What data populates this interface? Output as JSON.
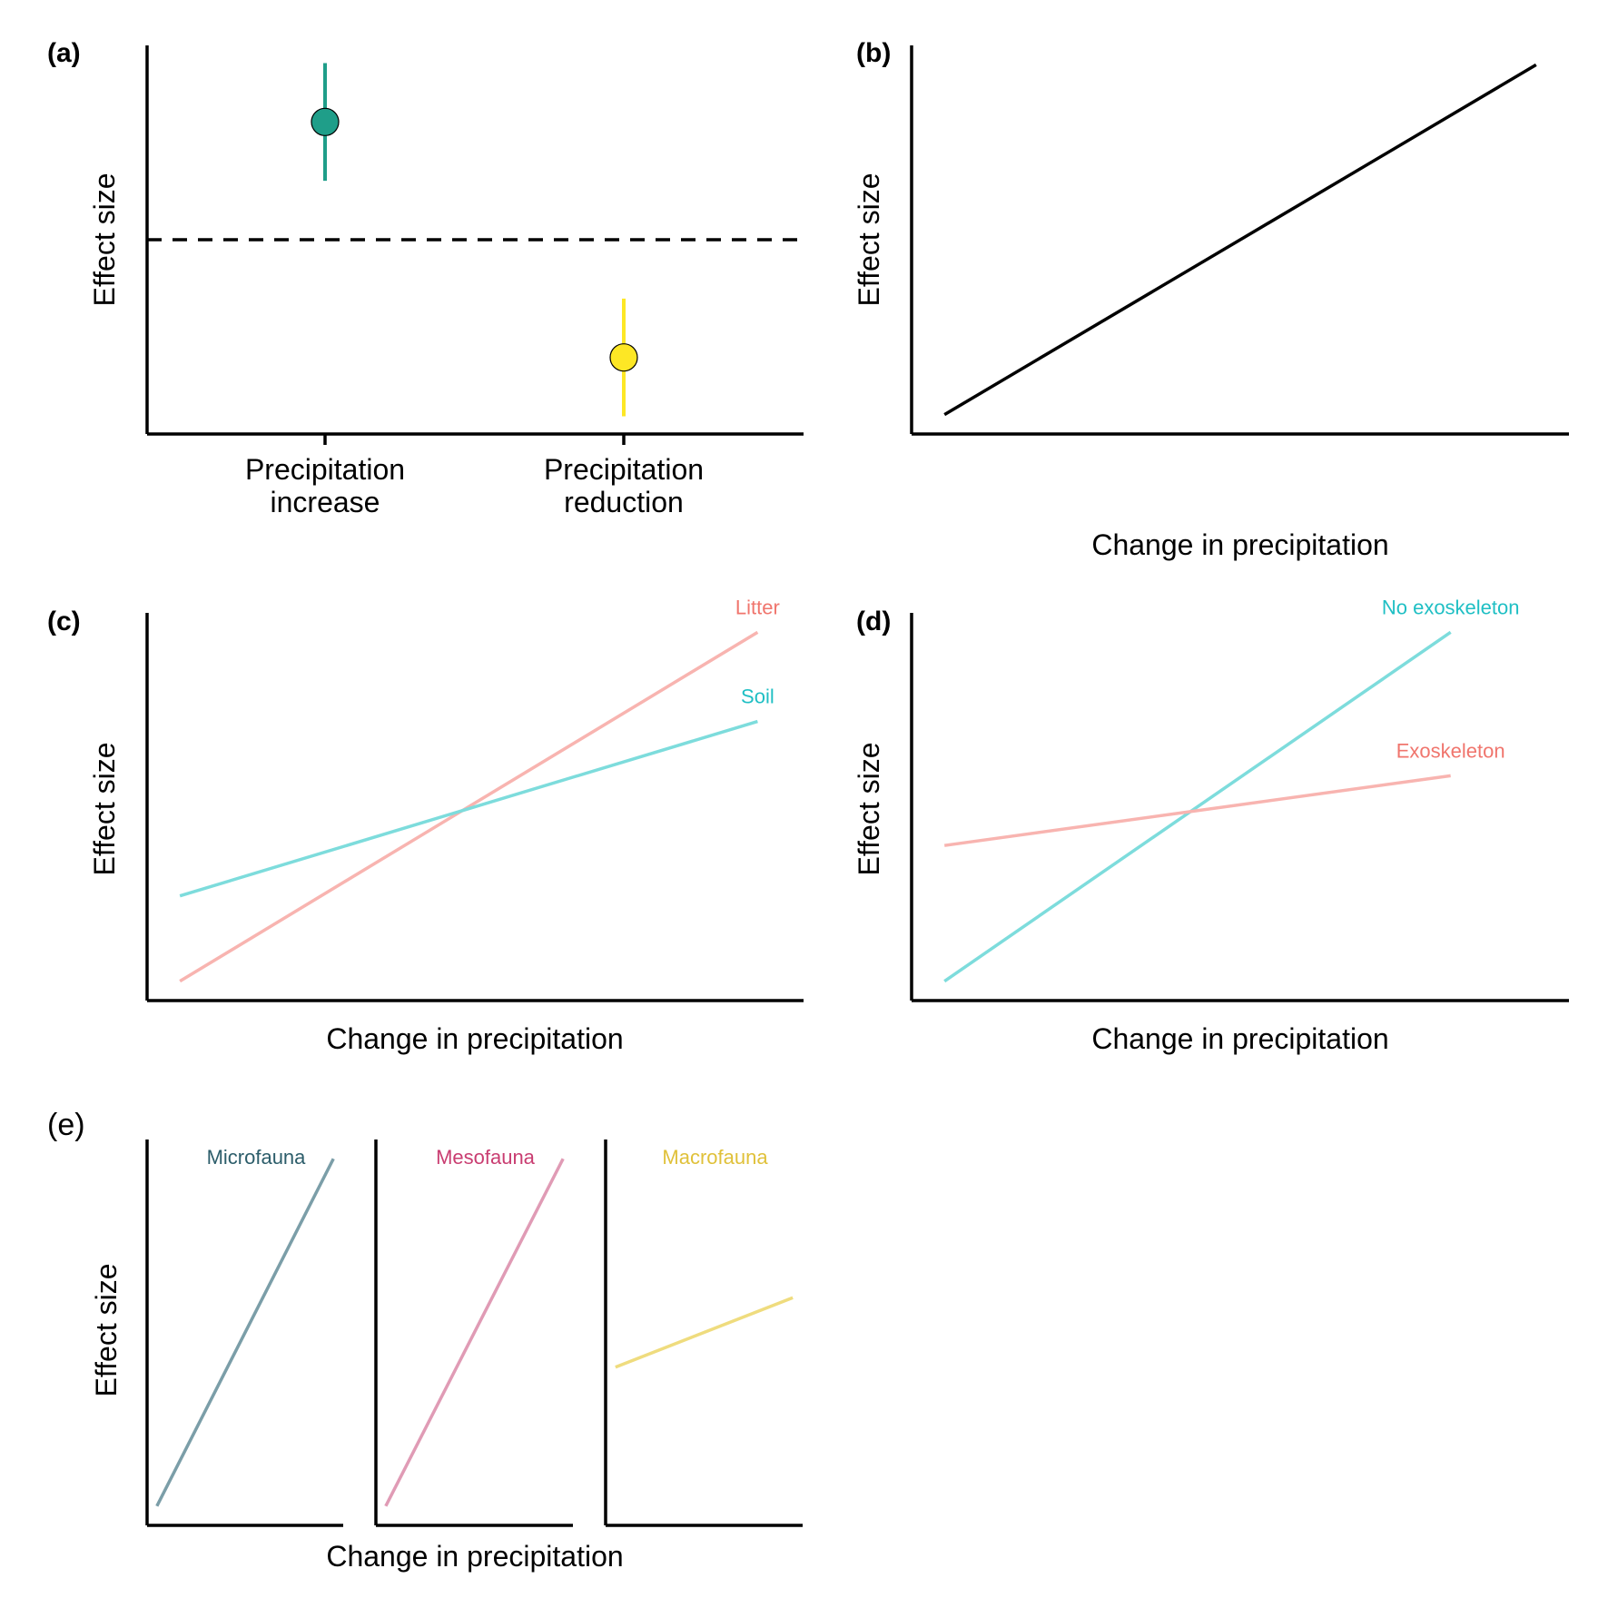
{
  "chart_data": [
    {
      "panel": "(a)",
      "type": "scatter",
      "ylabel": "Effect size",
      "xlabel": "",
      "categories": [
        "Precipitation\nincrease",
        "Precipitation\nreduction"
      ],
      "reference_line": 0,
      "points": [
        {
          "category": "Precipitation\nincrease",
          "value": 1.0,
          "lower": 0.5,
          "upper": 1.5,
          "color": "#1f9e89"
        },
        {
          "category": "Precipitation\nreduction",
          "value": -1.0,
          "lower": -1.5,
          "upper": -0.5,
          "color": "#fde725"
        }
      ],
      "ylim": [
        -1.65,
        1.65
      ]
    },
    {
      "panel": "(b)",
      "type": "line",
      "ylabel": "Effect size",
      "xlabel": "Change in precipitation",
      "series": [
        {
          "name": "",
          "x": [
            0.05,
            0.95
          ],
          "y": [
            0.05,
            0.95
          ],
          "color": "#000000"
        }
      ],
      "xlim": [
        0,
        1
      ],
      "ylim": [
        0,
        1
      ]
    },
    {
      "panel": "(c)",
      "type": "line",
      "ylabel": "Effect size",
      "xlabel": "Change in precipitation",
      "series": [
        {
          "name": "Litter",
          "x": [
            0.05,
            0.93
          ],
          "y": [
            0.05,
            0.95
          ],
          "color": "#f8b4b0",
          "label_color": "#f0756d"
        },
        {
          "name": "Soil",
          "x": [
            0.05,
            0.93
          ],
          "y": [
            0.27,
            0.72
          ],
          "color": "#7ddcdc",
          "label_color": "#1fbfc4"
        }
      ],
      "xlim": [
        0,
        1
      ],
      "ylim": [
        0,
        1
      ]
    },
    {
      "panel": "(d)",
      "type": "line",
      "ylabel": "Effect size",
      "xlabel": "Change in precipitation",
      "series": [
        {
          "name": "No exoskeleton",
          "x": [
            0.05,
            0.82
          ],
          "y": [
            0.05,
            0.95
          ],
          "color": "#7ddcdc",
          "label_color": "#1fbfc4"
        },
        {
          "name": "Exoskeleton",
          "x": [
            0.05,
            0.82
          ],
          "y": [
            0.4,
            0.58
          ],
          "color": "#f8b4b0",
          "label_color": "#f0756d"
        }
      ],
      "xlim": [
        0,
        1
      ],
      "ylim": [
        0,
        1
      ]
    },
    {
      "panel": "(e)",
      "type": "line",
      "ylabel": "Effect size",
      "xlabel": "Change in precipitation",
      "facets": [
        {
          "name": "Microfauna",
          "x": [
            0.05,
            0.95
          ],
          "y": [
            0.05,
            0.95
          ],
          "color": "#7b9ea8",
          "label_color": "#2c5d6a"
        },
        {
          "name": "Mesofauna",
          "x": [
            0.05,
            0.95
          ],
          "y": [
            0.05,
            0.95
          ],
          "color": "#e09bb5",
          "label_color": "#c93d71"
        },
        {
          "name": "Macrofauna",
          "x": [
            0.05,
            0.95
          ],
          "y": [
            0.41,
            0.59
          ],
          "color": "#efdc7e",
          "label_color": "#e0c13a"
        }
      ],
      "xlim": [
        0,
        1
      ],
      "ylim": [
        0,
        1
      ]
    }
  ]
}
